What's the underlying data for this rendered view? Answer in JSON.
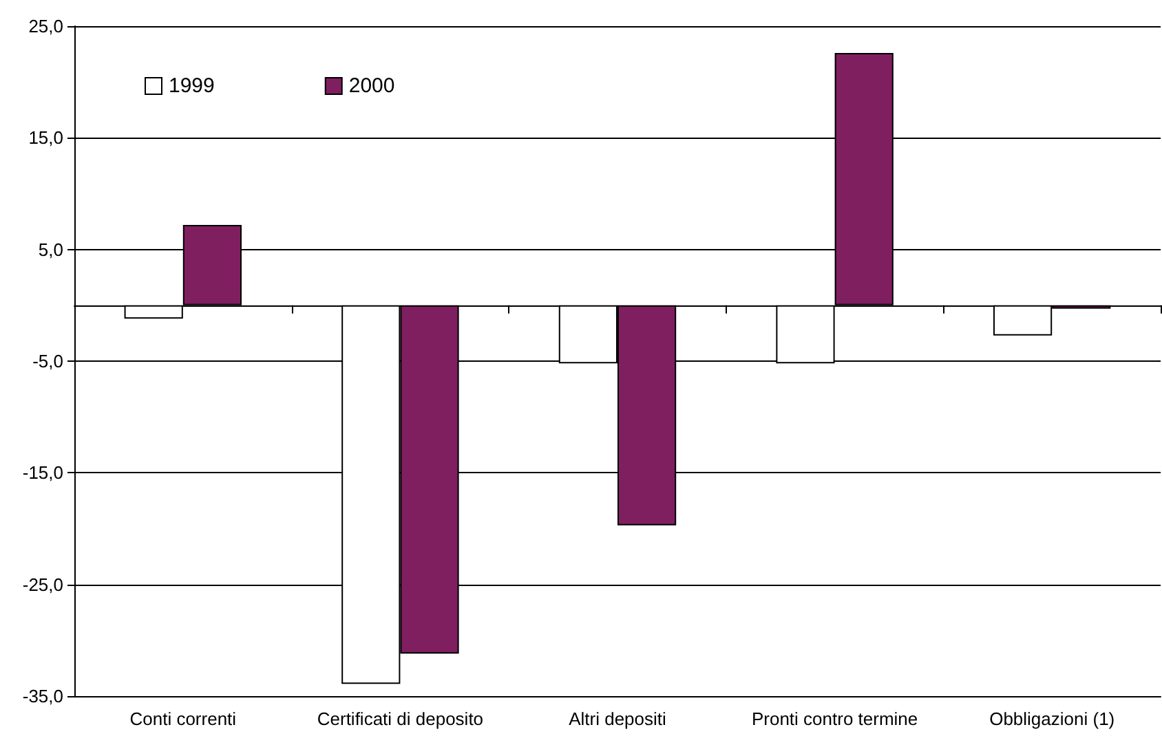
{
  "chart_data": {
    "type": "bar",
    "categories": [
      "Conti correnti",
      "Certificati di deposito",
      "Altri depositi",
      "Pronti contro termine",
      "Obbligazioni (1)"
    ],
    "series": [
      {
        "name": "1999",
        "color": "#ffffff",
        "values": [
          -1.2,
          -33.9,
          -5.2,
          -5.2,
          -2.7
        ]
      },
      {
        "name": "2000",
        "color": "#7f1f5f",
        "values": [
          7.2,
          -31.2,
          -19.7,
          22.6,
          -0.3
        ]
      }
    ],
    "ylim": [
      -35,
      25
    ],
    "yticks": [
      {
        "value": -35,
        "label": "-35,0"
      },
      {
        "value": -25,
        "label": "-25,0"
      },
      {
        "value": -15,
        "label": "-15,0"
      },
      {
        "value": -5,
        "label": "-5,0"
      },
      {
        "value": 5,
        "label": "5,0"
      },
      {
        "value": 15,
        "label": "15,0"
      },
      {
        "value": 25,
        "label": "25,0"
      }
    ],
    "grid": "y",
    "legend": "top left"
  }
}
